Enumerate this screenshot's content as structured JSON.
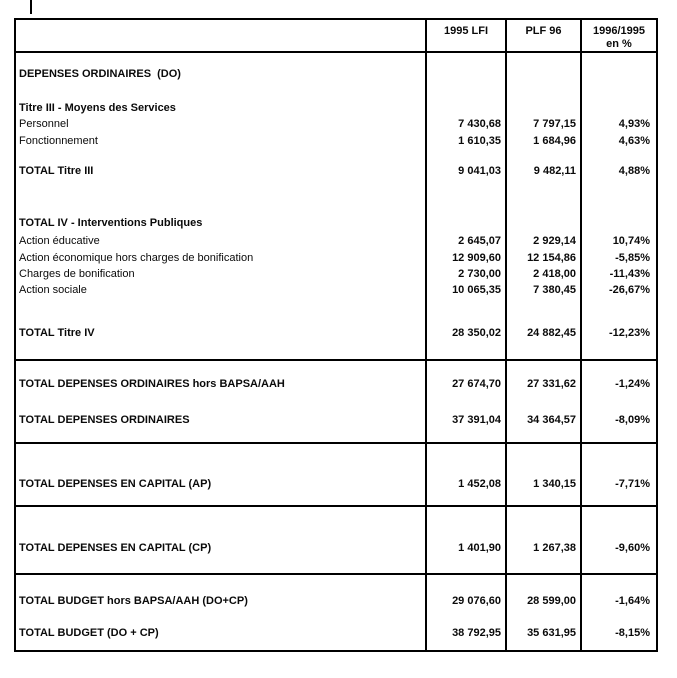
{
  "page": {
    "background_color": "#ffffff",
    "ink_color": "#0a0a0a"
  },
  "table": {
    "headers": [
      {
        "label": "1995 LFI"
      },
      {
        "label": "PLF 96"
      },
      {
        "label": "1996/1995",
        "sublabel": "en %"
      }
    ],
    "rows": [
      {
        "label": "DEPENSES ORDINAIRES  (DO)",
        "kind": "section",
        "values": [
          "",
          "",
          ""
        ]
      },
      {
        "label": "Titre III - Moyens des Services",
        "kind": "section",
        "values": [
          "",
          "",
          ""
        ]
      },
      {
        "label": "Personnel",
        "kind": "item",
        "values": [
          "7 430,68",
          "7 797,15",
          "4,93%"
        ]
      },
      {
        "label": "Fonctionnement",
        "kind": "item",
        "values": [
          "1 610,35",
          "1 684,96",
          "4,63%"
        ]
      },
      {
        "label": "TOTAL Titre III",
        "kind": "total",
        "values": [
          "9 041,03",
          "9 482,11",
          "4,88%"
        ]
      },
      {
        "label": "TOTAL IV - Interventions Publiques",
        "kind": "section",
        "values": [
          "",
          "",
          ""
        ]
      },
      {
        "label": "Action éducative",
        "kind": "item",
        "values": [
          "2 645,07",
          "2 929,14",
          "10,74%"
        ]
      },
      {
        "label": "Action économique hors charges de bonification",
        "kind": "item",
        "values": [
          "12 909,60",
          "12 154,86",
          "-5,85%"
        ]
      },
      {
        "label": "Charges de bonification",
        "kind": "item",
        "values": [
          "2 730,00",
          "2 418,00",
          "-11,43%"
        ]
      },
      {
        "label": "Action sociale",
        "kind": "item",
        "values": [
          "10 065,35",
          "7 380,45",
          "-26,67%"
        ]
      },
      {
        "label": "TOTAL Titre IV",
        "kind": "total",
        "values": [
          "28 350,02",
          "24 882,45",
          "-12,23%"
        ]
      },
      {
        "label": "TOTAL DEPENSES ORDINAIRES hors BAPSA/AAH",
        "kind": "total",
        "values": [
          "27 674,70",
          "27 331,62",
          "-1,24%"
        ]
      },
      {
        "label": "TOTAL DEPENSES ORDINAIRES",
        "kind": "total",
        "values": [
          "37 391,04",
          "34 364,57",
          "-8,09%"
        ]
      },
      {
        "label": "TOTAL DEPENSES EN CAPITAL (AP)",
        "kind": "total",
        "values": [
          "1 452,08",
          "1 340,15",
          "-7,71%"
        ]
      },
      {
        "label": "TOTAL DEPENSES EN CAPITAL (CP)",
        "kind": "total",
        "values": [
          "1 401,90",
          "1 267,38",
          "-9,60%"
        ]
      },
      {
        "label": "TOTAL BUDGET hors BAPSA/AAH (DO+CP)",
        "kind": "total",
        "values": [
          "29 076,60",
          "28 599,00",
          "-1,64%"
        ]
      },
      {
        "label": "TOTAL BUDGET (DO + CP)",
        "kind": "total",
        "values": [
          "38 792,95",
          "35 631,95",
          "-8,15%"
        ]
      }
    ]
  }
}
